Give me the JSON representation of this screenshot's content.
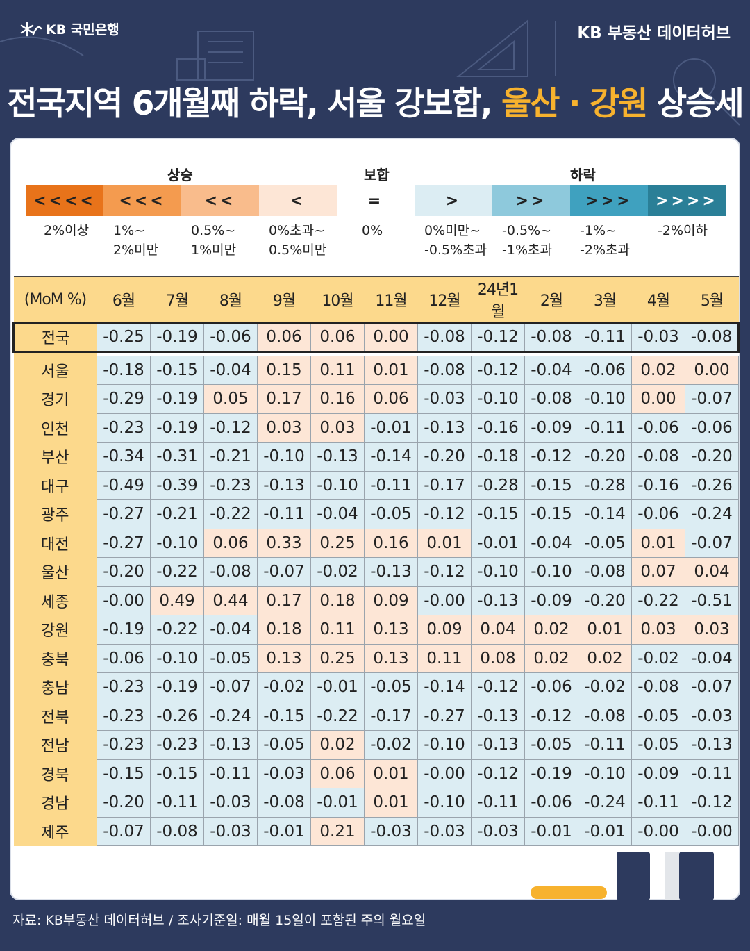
{
  "brand": {
    "bank": "KB 국민은행",
    "hub": "KB 부동산  데이터허브"
  },
  "headline": {
    "part1": "전국지역 6개월째 하락, 서울 강보합, ",
    "highlight": "울산 · 강원",
    "part2": " 상승세"
  },
  "colors": {
    "background": "#2d3a5e",
    "accent": "#f7b22e",
    "header_fill": "#fcd98c",
    "negative_cell": "#dcedf3",
    "positive_cell": "#fde6d6"
  },
  "legend": {
    "groups": {
      "up": "상승",
      "flat": "보합",
      "down": "하락"
    },
    "items": [
      {
        "symbol": "<<<<",
        "label": "2%이상",
        "color": "#e8731a"
      },
      {
        "symbol": "<<<",
        "label": "1%~\n2%미만",
        "color": "#f49b4f"
      },
      {
        "symbol": "<<",
        "label": "0.5%~\n1%미만",
        "color": "#f9bc8c"
      },
      {
        "symbol": "<",
        "label": "0%초과~\n0.5%미만",
        "color": "#fde6d6"
      },
      {
        "symbol": "=",
        "label": "0%",
        "color": "#ffffff"
      },
      {
        "symbol": ">",
        "label": "0%미만~\n-0.5%초과",
        "color": "#dcedf3"
      },
      {
        "symbol": ">>",
        "label": "-0.5%~\n-1%초과",
        "color": "#8ec9dc"
      },
      {
        "symbol": ">>>",
        "label": "-1%~\n-2%초과",
        "color": "#3fa1bf"
      },
      {
        "symbol": ">>>>",
        "label": "-2%이하",
        "color": "#2a7f97"
      }
    ]
  },
  "chart_data": {
    "type": "table",
    "corner_label": "(MoM %)",
    "columns": [
      "6월",
      "7월",
      "8월",
      "9월",
      "10월",
      "11월",
      "12월",
      "24년1월",
      "2월",
      "3월",
      "4월",
      "5월"
    ],
    "rows": [
      {
        "region": "전국",
        "values": [
          "-0.25",
          "-0.19",
          "-0.06",
          "0.06",
          "0.06",
          "0.00",
          "-0.08",
          "-0.12",
          "-0.08",
          "-0.11",
          "-0.03",
          "-0.08"
        ]
      },
      {
        "region": "서울",
        "values": [
          "-0.18",
          "-0.15",
          "-0.04",
          "0.15",
          "0.11",
          "0.01",
          "-0.08",
          "-0.12",
          "-0.04",
          "-0.06",
          "0.02",
          "0.00"
        ]
      },
      {
        "region": "경기",
        "values": [
          "-0.29",
          "-0.19",
          "0.05",
          "0.17",
          "0.16",
          "0.06",
          "-0.03",
          "-0.10",
          "-0.08",
          "-0.10",
          "0.00",
          "-0.07"
        ]
      },
      {
        "region": "인천",
        "values": [
          "-0.23",
          "-0.19",
          "-0.12",
          "0.03",
          "0.03",
          "-0.01",
          "-0.13",
          "-0.16",
          "-0.09",
          "-0.11",
          "-0.06",
          "-0.06"
        ]
      },
      {
        "region": "부산",
        "values": [
          "-0.34",
          "-0.31",
          "-0.21",
          "-0.10",
          "-0.13",
          "-0.14",
          "-0.20",
          "-0.18",
          "-0.12",
          "-0.20",
          "-0.08",
          "-0.20"
        ]
      },
      {
        "region": "대구",
        "values": [
          "-0.49",
          "-0.39",
          "-0.23",
          "-0.13",
          "-0.10",
          "-0.11",
          "-0.17",
          "-0.28",
          "-0.15",
          "-0.28",
          "-0.16",
          "-0.26"
        ]
      },
      {
        "region": "광주",
        "values": [
          "-0.27",
          "-0.21",
          "-0.22",
          "-0.11",
          "-0.04",
          "-0.05",
          "-0.12",
          "-0.15",
          "-0.15",
          "-0.14",
          "-0.06",
          "-0.24"
        ]
      },
      {
        "region": "대전",
        "values": [
          "-0.27",
          "-0.10",
          "0.06",
          "0.33",
          "0.25",
          "0.16",
          "0.01",
          "-0.01",
          "-0.04",
          "-0.05",
          "0.01",
          "-0.07"
        ]
      },
      {
        "region": "울산",
        "values": [
          "-0.20",
          "-0.22",
          "-0.08",
          "-0.07",
          "-0.02",
          "-0.13",
          "-0.12",
          "-0.10",
          "-0.10",
          "-0.08",
          "0.07",
          "0.04"
        ]
      },
      {
        "region": "세종",
        "values": [
          "-0.00",
          "0.49",
          "0.44",
          "0.17",
          "0.18",
          "0.09",
          "-0.00",
          "-0.13",
          "-0.09",
          "-0.20",
          "-0.22",
          "-0.51"
        ]
      },
      {
        "region": "강원",
        "values": [
          "-0.19",
          "-0.22",
          "-0.04",
          "0.18",
          "0.11",
          "0.13",
          "0.09",
          "0.04",
          "0.02",
          "0.01",
          "0.03",
          "0.03"
        ]
      },
      {
        "region": "충북",
        "values": [
          "-0.06",
          "-0.10",
          "-0.05",
          "0.13",
          "0.25",
          "0.13",
          "0.11",
          "0.08",
          "0.02",
          "0.02",
          "-0.02",
          "-0.04"
        ]
      },
      {
        "region": "충남",
        "values": [
          "-0.23",
          "-0.19",
          "-0.07",
          "-0.02",
          "-0.01",
          "-0.05",
          "-0.14",
          "-0.12",
          "-0.06",
          "-0.02",
          "-0.08",
          "-0.07"
        ]
      },
      {
        "region": "전북",
        "values": [
          "-0.23",
          "-0.26",
          "-0.24",
          "-0.15",
          "-0.22",
          "-0.17",
          "-0.27",
          "-0.13",
          "-0.12",
          "-0.08",
          "-0.05",
          "-0.03"
        ]
      },
      {
        "region": "전남",
        "values": [
          "-0.23",
          "-0.23",
          "-0.13",
          "-0.05",
          "0.02",
          "-0.02",
          "-0.10",
          "-0.13",
          "-0.05",
          "-0.11",
          "-0.05",
          "-0.13"
        ]
      },
      {
        "region": "경북",
        "values": [
          "-0.15",
          "-0.15",
          "-0.11",
          "-0.03",
          "0.06",
          "0.01",
          "-0.00",
          "-0.12",
          "-0.19",
          "-0.10",
          "-0.09",
          "-0.11"
        ]
      },
      {
        "region": "경남",
        "values": [
          "-0.20",
          "-0.11",
          "-0.03",
          "-0.08",
          "-0.01",
          "0.01",
          "-0.10",
          "-0.11",
          "-0.06",
          "-0.24",
          "-0.11",
          "-0.12"
        ]
      },
      {
        "region": "제주",
        "values": [
          "-0.07",
          "-0.08",
          "-0.03",
          "-0.01",
          "0.21",
          "-0.03",
          "-0.03",
          "-0.03",
          "-0.01",
          "-0.01",
          "-0.00",
          "-0.00"
        ]
      }
    ]
  },
  "source": "자료: KB부동산 데이터허브 / 조사기준일: 매월 15일이 포함된 주의 월요일"
}
